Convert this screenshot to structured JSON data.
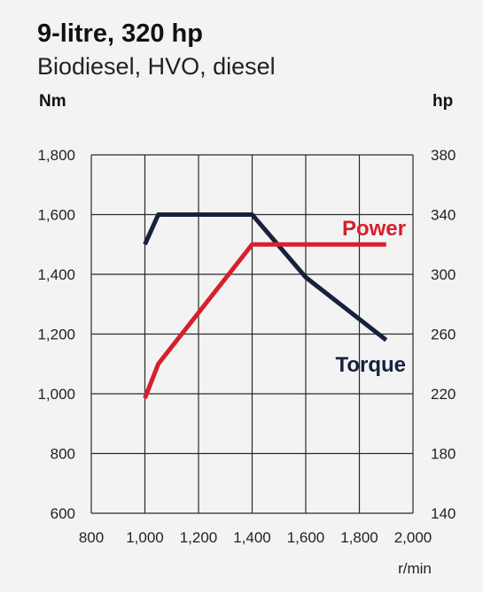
{
  "chart_data": {
    "type": "line",
    "title": "9-litre, 320 hp",
    "subtitle": "Biodiesel, HVO, diesel",
    "ylabel": "Nm",
    "y2label": "hp",
    "xlabel": "r/min",
    "xlim": [
      800,
      2000
    ],
    "ylim": [
      600,
      1800
    ],
    "y2lim": [
      140,
      380
    ],
    "x_ticks": [
      "800",
      "1,000",
      "1,200",
      "1,400",
      "1,600",
      "1,800",
      "2,000"
    ],
    "y_ticks": [
      "600",
      "800",
      "1,000",
      "1,200",
      "1,400",
      "1,600",
      "1,800"
    ],
    "y2_ticks": [
      "140",
      "180",
      "220",
      "260",
      "300",
      "340",
      "380"
    ],
    "grid": true,
    "series": [
      {
        "name": "Torque",
        "axis": "left",
        "color": "#16213e",
        "x": [
          1000,
          1050,
          1400,
          1600,
          1900
        ],
        "y": [
          1500,
          1600,
          1600,
          1390,
          1180
        ]
      },
      {
        "name": "Power",
        "axis": "right",
        "color": "#d6202b",
        "x": [
          1000,
          1050,
          1400,
          1900
        ],
        "y": [
          217,
          240,
          320,
          320
        ]
      }
    ]
  }
}
